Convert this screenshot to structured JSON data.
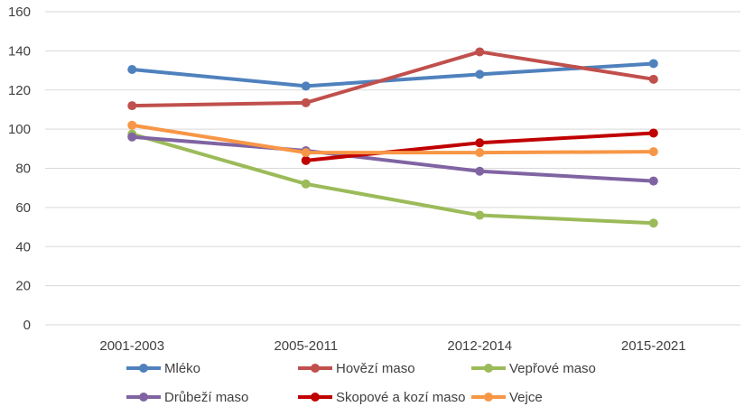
{
  "chart_data": {
    "type": "line",
    "title": "",
    "xlabel": "",
    "ylabel": "",
    "categories": [
      "2001-2003",
      "2005-2011",
      "2012-2014",
      "2015-2021"
    ],
    "ylim": [
      0,
      160
    ],
    "yticks": [
      0,
      20,
      40,
      60,
      80,
      100,
      120,
      140,
      160
    ],
    "grid": "horizontal",
    "legend_position": "bottom",
    "series": [
      {
        "name": "Mléko",
        "color": "#4F81BD",
        "values": [
          130.5,
          122,
          128,
          133.5
        ]
      },
      {
        "name": "Hovězí maso",
        "color": "#C0504D",
        "values": [
          112,
          113.5,
          139.5,
          125.5
        ]
      },
      {
        "name": "Vepřové maso",
        "color": "#9BBB59",
        "values": [
          97.5,
          72,
          56,
          52
        ]
      },
      {
        "name": "Drůbeží maso",
        "color": "#8064A2",
        "values": [
          96,
          89,
          78.5,
          73.5
        ]
      },
      {
        "name": "Skopové a kozí maso",
        "color": "#C00000",
        "values": [
          null,
          84,
          93,
          98
        ]
      },
      {
        "name": "Vejce",
        "color": "#F79646",
        "values": [
          102,
          88,
          88,
          88.5
        ]
      }
    ]
  }
}
